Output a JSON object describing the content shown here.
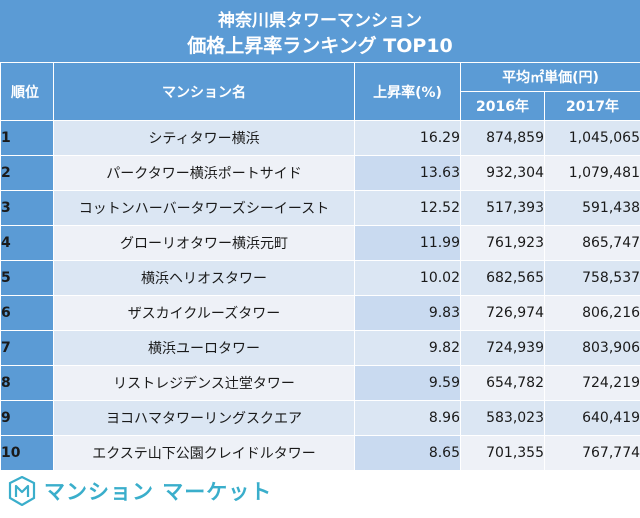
{
  "title": {
    "line1": "神奈川県タワーマンション",
    "line2": "価格上昇率ランキング TOP10"
  },
  "headers": {
    "rank": "順位",
    "name": "マンション名",
    "rate": "上昇率(%)",
    "price_group": "平均㎡単価(円)",
    "year1": "2016年",
    "year2": "2017年"
  },
  "rows": [
    {
      "rank": "1",
      "name": "シティタワー横浜",
      "rate": "16.29",
      "p2016": "874,859",
      "p2017": "1,045,065"
    },
    {
      "rank": "2",
      "name": "パークタワー横浜ポートサイド",
      "rate": "13.63",
      "p2016": "932,304",
      "p2017": "1,079,481"
    },
    {
      "rank": "3",
      "name": "コットンハーバータワーズシーイースト",
      "rate": "12.52",
      "p2016": "517,393",
      "p2017": "591,438"
    },
    {
      "rank": "4",
      "name": "グローリオタワー横浜元町",
      "rate": "11.99",
      "p2016": "761,923",
      "p2017": "865,747"
    },
    {
      "rank": "5",
      "name": "横浜ヘリオスタワー",
      "rate": "10.02",
      "p2016": "682,565",
      "p2017": "758,537"
    },
    {
      "rank": "6",
      "name": "ザスカイクルーズタワー",
      "rate": "9.83",
      "p2016": "726,974",
      "p2017": "806,216"
    },
    {
      "rank": "7",
      "name": "横浜ユーロタワー",
      "rate": "9.82",
      "p2016": "724,939",
      "p2017": "803,906"
    },
    {
      "rank": "8",
      "name": "リストレジデンス辻堂タワー",
      "rate": "9.59",
      "p2016": "654,782",
      "p2017": "724,219"
    },
    {
      "rank": "9",
      "name": "ヨコハマタワーリングスクエア",
      "rate": "8.96",
      "p2016": "583,023",
      "p2017": "640,419"
    },
    {
      "rank": "10",
      "name": "エクステ山下公園クレイドルタワー",
      "rate": "8.65",
      "p2016": "701,355",
      "p2017": "767,774"
    }
  ],
  "footer": {
    "logo_icon": "mansion-market-logo-icon",
    "brand": "マンション マーケット"
  },
  "colors": {
    "header_blue": "#5b9bd5",
    "row_light": "#dbe6f3",
    "brand_teal": "#3aaecb"
  }
}
